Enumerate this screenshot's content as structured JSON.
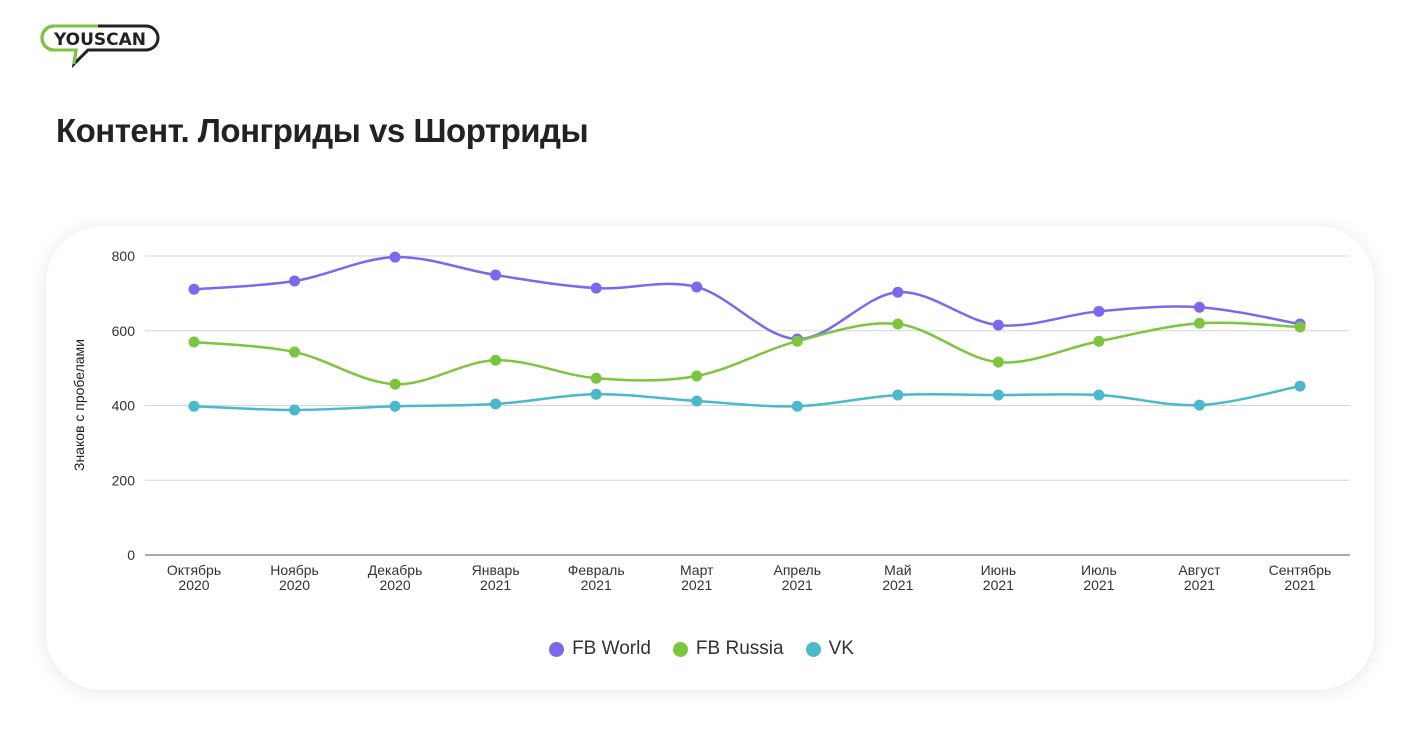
{
  "logo": {
    "text": "YOUSCAN"
  },
  "page_title": "Контент. Лонгриды vs Шортриды",
  "chart_data": {
    "type": "line",
    "title": "",
    "xlabel": "",
    "ylabel": "Знаков с пробелами",
    "ylim": [
      0,
      800
    ],
    "yticks": [
      0,
      200,
      400,
      600,
      800
    ],
    "grid": true,
    "legend_position": "bottom",
    "categories": [
      [
        "Октябрь",
        "2020"
      ],
      [
        "Ноябрь",
        "2020"
      ],
      [
        "Декабрь",
        "2020"
      ],
      [
        "Январь",
        "2021"
      ],
      [
        "Февраль",
        "2021"
      ],
      [
        "Март",
        "2021"
      ],
      [
        "Апрель",
        "2021"
      ],
      [
        "Май",
        "2021"
      ],
      [
        "Июнь",
        "2021"
      ],
      [
        "Июль",
        "2021"
      ],
      [
        "Август",
        "2021"
      ],
      [
        "Сентябрь",
        "2021"
      ]
    ],
    "series": [
      {
        "name": "FB World",
        "color": "#7b68ee",
        "values": [
          711,
          733,
          797,
          749,
          714,
          717,
          578,
          703,
          615,
          652,
          663,
          618
        ]
      },
      {
        "name": "FB Russia",
        "color": "#7cc53f",
        "values": [
          570,
          543,
          457,
          521,
          473,
          479,
          572,
          618,
          516,
          572,
          620,
          610
        ]
      },
      {
        "name": "VK",
        "color": "#4bb8cc",
        "values": [
          398,
          388,
          398,
          404,
          430,
          412,
          398,
          428,
          428,
          428,
          401,
          452
        ]
      }
    ]
  }
}
